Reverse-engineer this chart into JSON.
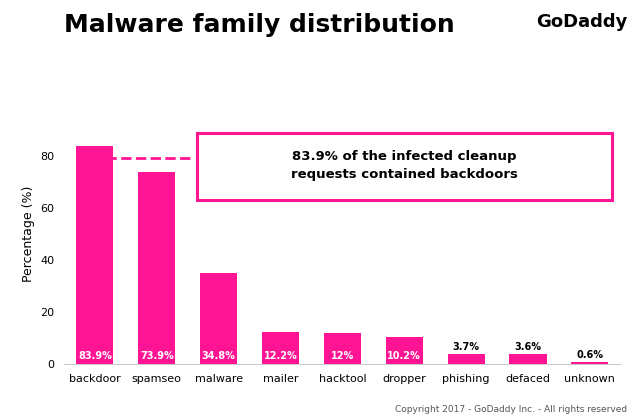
{
  "title": "Malware family distribution",
  "ylabel": "Percentage (%)",
  "categories": [
    "backdoor",
    "spamseo",
    "malware",
    "mailer",
    "hacktool",
    "dropper",
    "phishing",
    "defaced",
    "unknown"
  ],
  "values": [
    83.9,
    73.9,
    34.8,
    12.2,
    12.0,
    10.2,
    3.7,
    3.6,
    0.6
  ],
  "labels": [
    "83.9%",
    "73.9%",
    "34.8%",
    "12.2%",
    "12%",
    "10.2%",
    "3.7%",
    "3.6%",
    "0.6%"
  ],
  "bar_color": "#FF1493",
  "label_color_inside": "#FFFFFF",
  "label_color_outside": "#000000",
  "annotation_text": "83.9% of the infected cleanup\nrequests contained backdoors",
  "annotation_box_color": "#FF1493",
  "dashed_line_y": 79.5,
  "ylim": [
    0,
    100
  ],
  "yticks": [
    0,
    20,
    40,
    60,
    80
  ],
  "background_color": "#FFFFFF",
  "title_fontsize": 18,
  "ylabel_fontsize": 9,
  "tick_fontsize": 8,
  "copyright_text": "Copyright 2017 - GoDaddy Inc. - All rights reserved",
  "godaddy_text": "GoDaddy",
  "bar_width": 0.6
}
